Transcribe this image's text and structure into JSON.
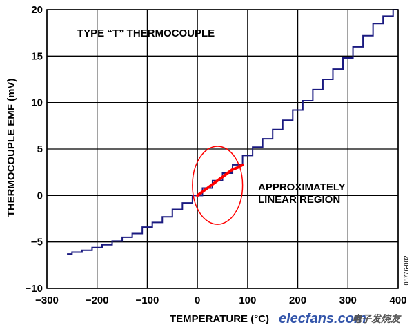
{
  "chart_data": {
    "type": "line",
    "title": "",
    "xlabel": "TEMPERATURE (°C)",
    "ylabel": "THERMOCOUPLE EMF (mV)",
    "xlim": [
      -300,
      400
    ],
    "ylim": [
      -10,
      20
    ],
    "xticks": [
      -300,
      -200,
      -100,
      0,
      100,
      200,
      300,
      400
    ],
    "yticks": [
      -10,
      -5,
      0,
      5,
      10,
      15,
      20
    ],
    "xtick_labels": [
      "−300",
      "−200",
      "−100",
      "0",
      "100",
      "200",
      "300",
      "400"
    ],
    "ytick_labels": [
      "−10",
      "−5",
      "0",
      "5",
      "10",
      "15",
      "20"
    ],
    "grid": true,
    "series": [
      {
        "name": "Type T thermocouple EMF",
        "color": "#1a1a80",
        "x": [
          -260,
          -240,
          -220,
          -200,
          -180,
          -160,
          -140,
          -120,
          -100,
          -80,
          -60,
          -40,
          -20,
          0,
          20,
          40,
          60,
          80,
          100,
          120,
          140,
          160,
          180,
          200,
          220,
          240,
          260,
          280,
          300,
          320,
          340,
          360,
          380,
          400
        ],
        "values": [
          -6.3,
          -6.1,
          -5.9,
          -5.6,
          -5.3,
          -4.9,
          -4.5,
          -4.1,
          -3.4,
          -2.9,
          -2.3,
          -1.5,
          -0.8,
          0.0,
          0.8,
          1.6,
          2.4,
          3.3,
          4.3,
          5.2,
          6.1,
          7.1,
          8.1,
          9.2,
          10.2,
          11.4,
          12.5,
          13.6,
          14.8,
          16.0,
          17.2,
          18.5,
          19.3,
          20.0
        ]
      },
      {
        "name": "Approximately linear region",
        "color": "#ff0000",
        "x": [
          0,
          10,
          20,
          30,
          40,
          50,
          60,
          70,
          80,
          90
        ],
        "values": [
          0.0,
          0.4,
          0.8,
          1.2,
          1.6,
          2.0,
          2.4,
          2.8,
          3.0,
          3.3
        ]
      }
    ],
    "annotations": {
      "curve_label": "TYPE “T” THERMOCOUPLE",
      "region_label_line1": "APPROXIMATELY",
      "region_label_line2": "LINEAR REGION"
    },
    "highlight_ellipse": {
      "center_x": 40,
      "center_y": 1.1,
      "radius_x": 50,
      "radius_y": 4.2,
      "color": "#ff0000"
    },
    "figure_code": "08776-002",
    "watermark": {
      "text": "elecfans.com",
      "cn_text": "电子发烧友",
      "color_main": "#3355aa",
      "color_accent": "#d02020"
    }
  }
}
